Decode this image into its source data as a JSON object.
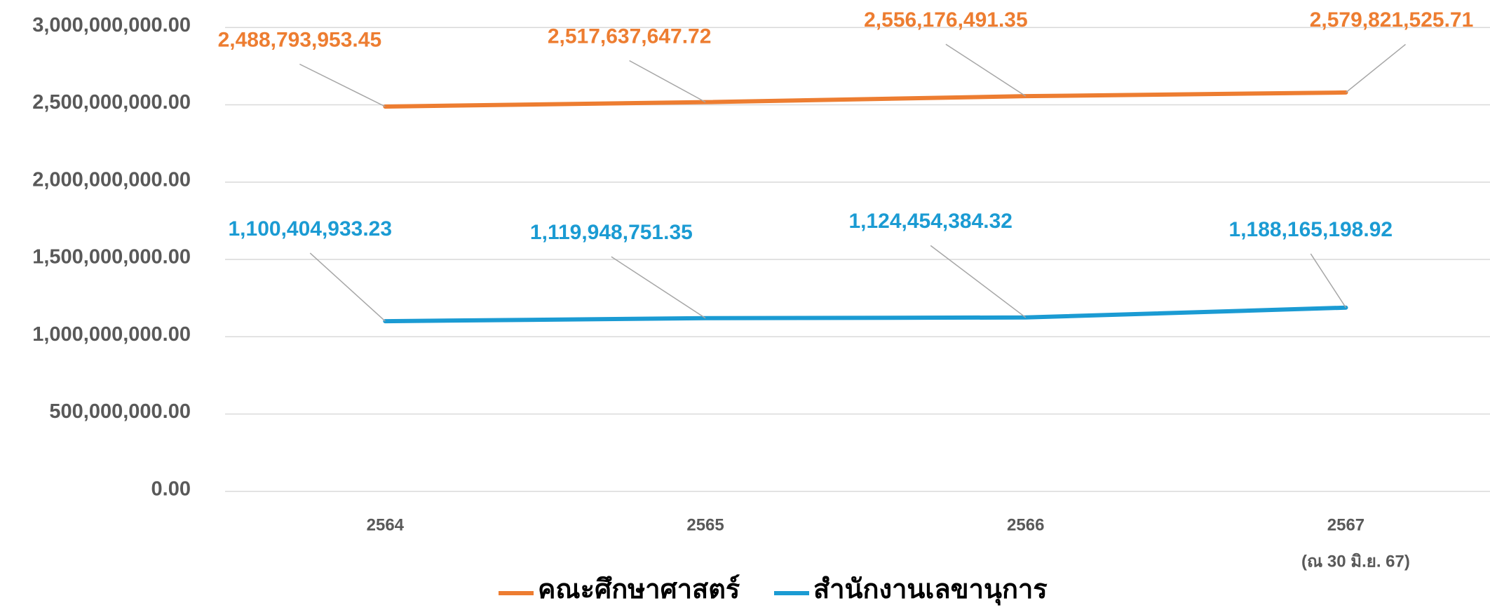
{
  "chart_data": {
    "type": "line",
    "categories": [
      "2564",
      "2565",
      "2566",
      "2567"
    ],
    "annotation": "(ณ 30 มิ.ย. 67)",
    "series": [
      {
        "name": "คณะศึกษาศาสตร์",
        "color": "#ed7d31",
        "values": [
          2488793953.45,
          2517637647.72,
          2556176491.35,
          2579821525.71
        ],
        "value_labels": [
          "2,488,793,953.45",
          "2,517,637,647.72",
          "2,556,176,491.35",
          "2,579,821,525.71"
        ]
      },
      {
        "name": "สำนักงานเลขานุการ",
        "color": "#1b9bd3",
        "values": [
          1100404933.23,
          1119948751.35,
          1124454384.32,
          1188165198.92
        ],
        "value_labels": [
          "1,100,404,933.23",
          "1,119,948,751.35",
          "1,124,454,384.32",
          "1,188,165,198.92"
        ]
      }
    ],
    "ylim": [
      0,
      3000000000
    ],
    "yticks": [
      {
        "value": 0,
        "label": "0.00"
      },
      {
        "value": 500000000,
        "label": "500,000,000.00"
      },
      {
        "value": 1000000000,
        "label": "1,000,000,000.00"
      },
      {
        "value": 1500000000,
        "label": "1,500,000,000.00"
      },
      {
        "value": 2000000000,
        "label": "2,000,000,000.00"
      },
      {
        "value": 2500000000,
        "label": "2,500,000,000.00"
      },
      {
        "value": 3000000000,
        "label": "3,000,000,000.00"
      }
    ],
    "grid": true
  }
}
